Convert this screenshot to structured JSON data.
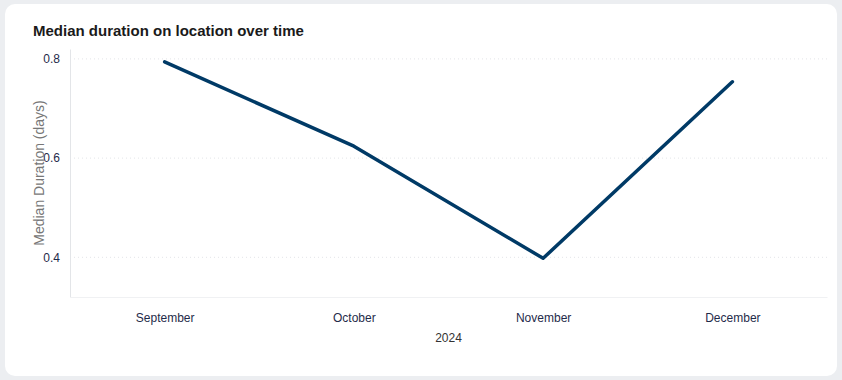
{
  "chart_data": {
    "type": "line",
    "title": "Median duration on location over time",
    "x_label": "2024",
    "y_label": "Median Duration (days)",
    "categories": [
      "September",
      "October",
      "November",
      "December"
    ],
    "values": [
      0.794,
      0.624,
      0.398,
      0.754
    ],
    "color": "#003a66",
    "ylim": [
      0.32,
      0.82
    ],
    "yticks": [
      0.4,
      0.6,
      0.8
    ],
    "grid": true
  }
}
